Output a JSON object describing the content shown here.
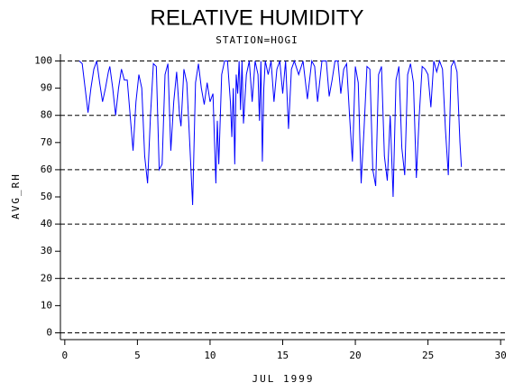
{
  "chart_data": {
    "type": "line",
    "title": "RELATIVE HUMIDITY",
    "subtitle": "STATION=HOGI",
    "ylabel": "AVG_RH",
    "xlabel": "JUL 1999",
    "xlim": [
      -0.3,
      30.3
    ],
    "xticks": [
      0,
      5,
      10,
      15,
      20,
      25,
      30
    ],
    "ylim": [
      -2.5,
      102.5
    ],
    "yticks": [
      0,
      10,
      20,
      30,
      40,
      50,
      60,
      70,
      80,
      90,
      100
    ],
    "ygrid": [
      0,
      20,
      40,
      60,
      80,
      100
    ],
    "series": [
      {
        "color": "#0000ff",
        "x": [
          1.0,
          1.2,
          1.4,
          1.6,
          1.8,
          2.0,
          2.2,
          2.4,
          2.6,
          2.8,
          3.0,
          3.1,
          3.3,
          3.5,
          3.7,
          3.9,
          4.1,
          4.3,
          4.5,
          4.7,
          4.9,
          5.1,
          5.3,
          5.5,
          5.7,
          5.9,
          6.1,
          6.3,
          6.5,
          6.7,
          6.9,
          7.1,
          7.3,
          7.5,
          7.7,
          7.9,
          8.0,
          8.2,
          8.4,
          8.6,
          8.8,
          9.0,
          9.2,
          9.4,
          9.6,
          9.8,
          10.0,
          10.2,
          10.4,
          10.5,
          10.6,
          10.8,
          11.0,
          11.2,
          11.4,
          11.5,
          11.6,
          11.7,
          11.8,
          11.9,
          12.0,
          12.1,
          12.2,
          12.3,
          12.5,
          12.7,
          12.9,
          13.1,
          13.3,
          13.4,
          13.5,
          13.6,
          13.7,
          13.8,
          14.0,
          14.2,
          14.4,
          14.6,
          14.8,
          15.0,
          15.2,
          15.4,
          15.6,
          15.8,
          16.1,
          16.4,
          16.7,
          17.0,
          17.2,
          17.4,
          17.7,
          18.0,
          18.2,
          18.4,
          18.6,
          18.8,
          19.0,
          19.2,
          19.4,
          19.6,
          19.8,
          20.0,
          20.2,
          20.4,
          20.6,
          20.8,
          21.0,
          21.2,
          21.4,
          21.6,
          21.8,
          22.0,
          22.2,
          22.4,
          22.6,
          22.8,
          23.0,
          23.2,
          23.4,
          23.6,
          23.8,
          24.0,
          24.2,
          24.4,
          24.6,
          24.8,
          25.0,
          25.2,
          25.4,
          25.6,
          25.8,
          26.0,
          26.2,
          26.4,
          26.6,
          26.8,
          27.0,
          27.2,
          27.3
        ],
        "values": [
          100,
          99,
          90,
          81,
          90,
          97,
          100,
          92,
          85,
          90,
          96,
          98,
          90,
          80,
          90,
          97,
          93,
          93,
          80,
          67,
          85,
          95,
          90,
          65,
          55,
          80,
          99,
          98,
          60,
          62,
          95,
          99,
          67,
          85,
          96,
          80,
          76,
          97,
          92,
          70,
          47,
          92,
          99,
          90,
          84,
          92,
          85,
          88,
          55,
          78,
          62,
          95,
          100,
          100,
          85,
          72,
          90,
          62,
          95,
          88,
          100,
          82,
          100,
          77,
          95,
          100,
          85,
          100,
          95,
          78,
          100,
          63,
          90,
          100,
          95,
          100,
          85,
          97,
          100,
          88,
          100,
          75,
          97,
          100,
          95,
          100,
          86,
          100,
          98,
          85,
          100,
          100,
          87,
          93,
          100,
          100,
          88,
          97,
          99,
          80,
          63,
          98,
          92,
          55,
          75,
          98,
          97,
          60,
          54,
          95,
          98,
          65,
          56,
          80,
          50,
          93,
          98,
          68,
          58,
          95,
          99,
          92,
          57,
          80,
          98,
          97,
          95,
          83,
          100,
          96,
          100,
          97,
          75,
          58,
          98,
          100,
          96,
          70,
          61
        ]
      }
    ]
  }
}
